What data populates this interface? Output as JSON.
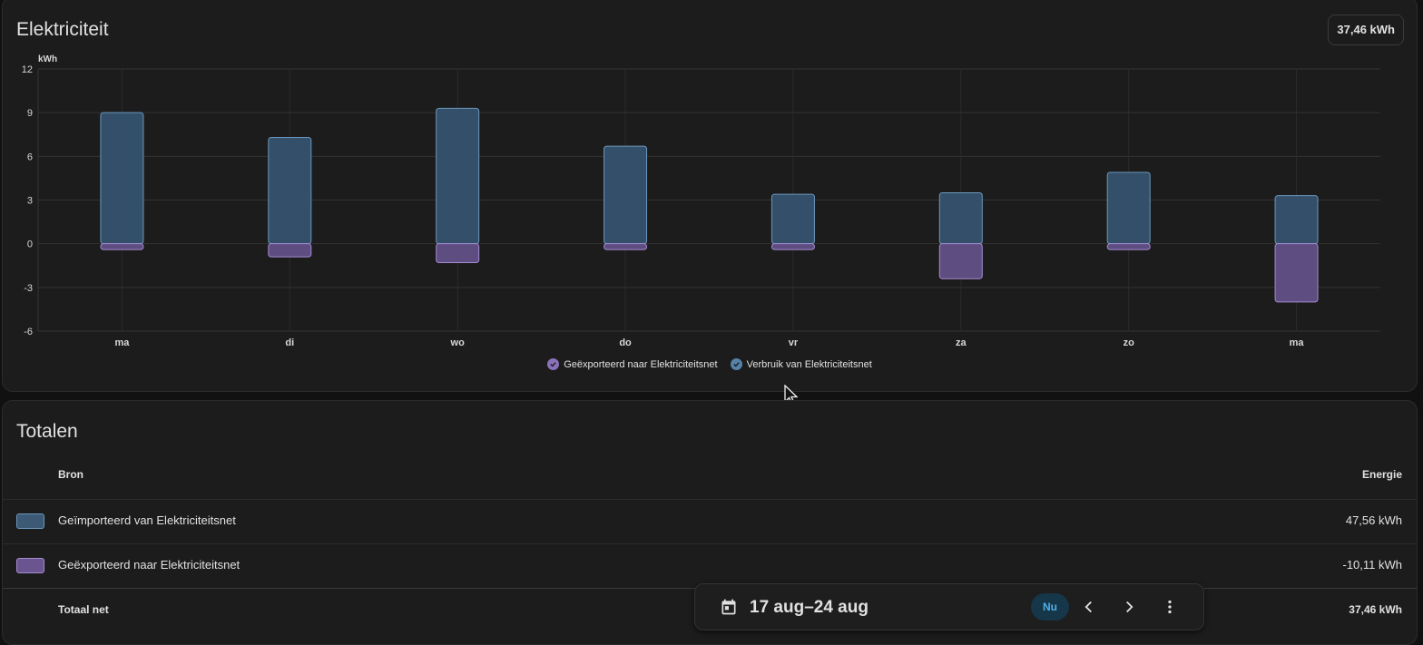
{
  "chart_card": {
    "title": "Elektriciteit",
    "total_badge": "37,46 kWh"
  },
  "legend": [
    {
      "label": "Geëxporteerd naar Elektriciteitsnet",
      "color": "#8a72b8"
    },
    {
      "label": "Verbruik van Elektriciteitsnet",
      "color": "#5582a8"
    }
  ],
  "chart_data": {
    "type": "bar",
    "stacked": true,
    "unit": "kWh",
    "categories": [
      "ma",
      "di",
      "wo",
      "do",
      "vr",
      "za",
      "zo",
      "ma"
    ],
    "y_ticks": [
      "12",
      "9",
      "6",
      "3",
      "0",
      "-3",
      "-6"
    ],
    "ylim": [
      -6,
      12
    ],
    "grid": true,
    "legend_position": "bottom",
    "series": [
      {
        "name": "Verbruik van Elektriciteitsnet",
        "color": "#5582a8",
        "values": [
          9.0,
          7.3,
          9.3,
          6.7,
          3.4,
          3.5,
          4.9,
          3.3
        ]
      },
      {
        "name": "Geëxporteerd naar Elektriciteitsnet",
        "color": "#8a72b8",
        "values": [
          -0.4,
          -0.9,
          -1.3,
          -0.4,
          -0.4,
          -2.4,
          -0.4,
          -4.0
        ]
      }
    ]
  },
  "totals_card": {
    "title": "Totalen",
    "header_source": "Bron",
    "header_energy": "Energie",
    "rows": [
      {
        "label": "Geïmporteerd van Elektriciteitsnet",
        "value": "47,56 kWh",
        "color": "#3c5a75",
        "border": "#6b97bd"
      },
      {
        "label": "Geëxporteerd naar Elektriciteitsnet",
        "value": "-10,11 kWh",
        "color": "#6a5590",
        "border": "#a48bd0"
      }
    ],
    "total_label": "Totaal net",
    "total_value": "37,46 kWh"
  },
  "date_bar": {
    "range": "17 aug–24 aug",
    "now_label": "Nu",
    "icons": [
      "calendar-icon",
      "chevron-left-icon",
      "chevron-right-icon",
      "more-vert-icon"
    ]
  }
}
